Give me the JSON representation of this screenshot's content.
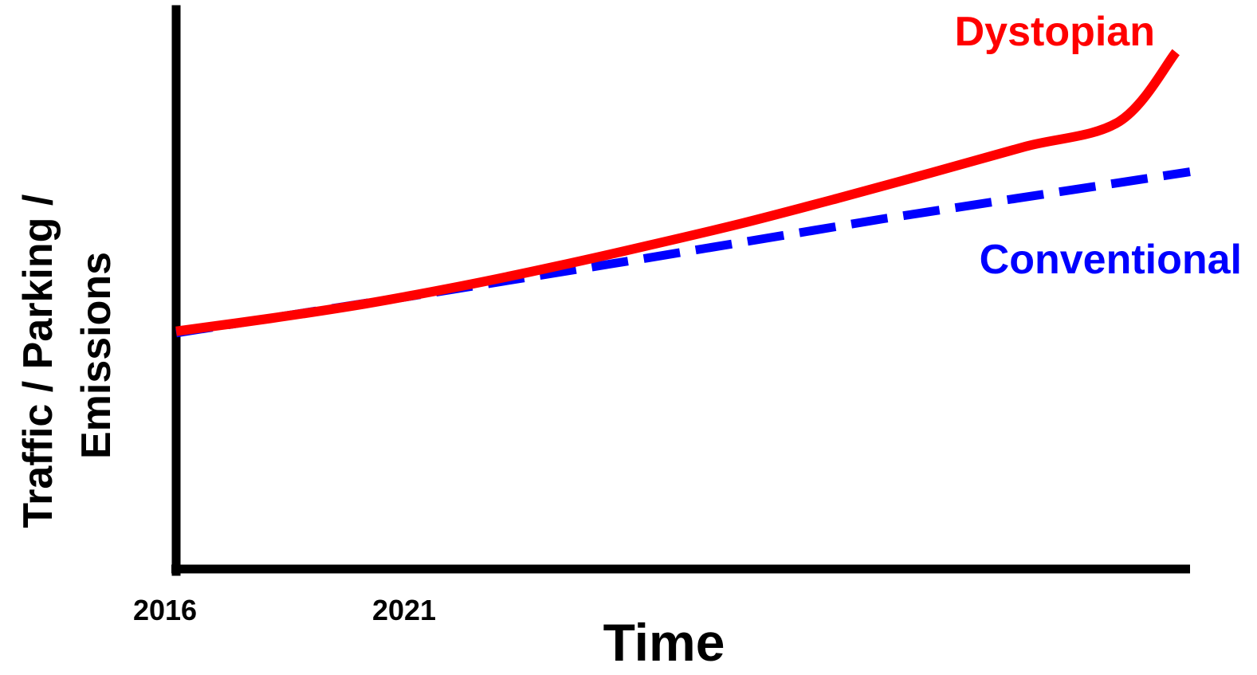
{
  "chart_data": {
    "type": "line",
    "title": "",
    "xlabel": "Time",
    "ylabel": "Traffic / Parking / Emissions",
    "ylabel_lines": [
      "Traffic / Parking /",
      "Emissions"
    ],
    "x_tick_labels": [
      "2016",
      "2021"
    ],
    "x_ticks": [
      2016,
      2021
    ],
    "xlim": [
      2016,
      2037.5
    ],
    "ylim": [
      0,
      100
    ],
    "y_tick_labels": [],
    "grid": false,
    "legend": "inline labels at line ends",
    "series": [
      {
        "name": "Dystopian",
        "color": "#ff0000",
        "style": "solid",
        "x": [
          2016,
          2018,
          2020,
          2022,
          2024,
          2026,
          2028,
          2030,
          2032,
          2034,
          2036,
          2037.2
        ],
        "y": [
          42.5,
          44.8,
          47.4,
          50.5,
          54.0,
          57.8,
          61.8,
          66.2,
          70.8,
          75.5,
          80.0,
          92.4
        ]
      },
      {
        "name": "Conventional",
        "color": "#0000ff",
        "style": "dashed",
        "x": [
          2016,
          2021,
          2026,
          2031,
          2037.5
        ],
        "y": [
          42.2,
          48.8,
          55.6,
          62.6,
          71.0
        ]
      }
    ]
  }
}
